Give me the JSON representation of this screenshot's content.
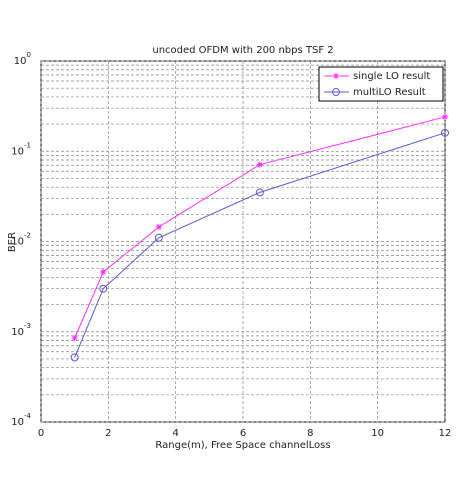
{
  "chart_data": {
    "type": "line",
    "title": "uncoded OFDM with 200 nbps TSF 2",
    "x_label": "Range(m), Free Space channelLoss",
    "y_label": "BER",
    "xlim": [
      0,
      12
    ],
    "xticks": [
      0,
      2,
      4,
      6,
      8,
      10,
      12
    ],
    "ylim": [
      0.0001,
      1
    ],
    "yticks": [
      {
        "value": 0.0001,
        "label": "10",
        "exponent": "-4"
      },
      {
        "value": 0.001,
        "label": "10",
        "exponent": "-3"
      },
      {
        "value": 0.01,
        "label": "10",
        "exponent": "-2"
      },
      {
        "value": 0.1,
        "label": "10",
        "exponent": "-1"
      },
      {
        "value": 1,
        "label": "10",
        "exponent": "0"
      }
    ],
    "log_y": true,
    "grid": true,
    "minor_grid": true,
    "legend": "upper-right",
    "series": [
      {
        "name": "single LO result",
        "color": "#ff33ff",
        "marker": "star",
        "x": [
          1,
          1.85,
          3.5,
          6.5,
          12
        ],
        "values": [
          0.00085,
          0.0046,
          0.0145,
          0.071,
          0.24
        ]
      },
      {
        "name": "multiLO Result",
        "color": "#5b5bd6",
        "marker": "circle",
        "x": [
          1,
          1.85,
          3.5,
          6.5,
          12
        ],
        "values": [
          0.00052,
          0.003,
          0.011,
          0.035,
          0.16
        ]
      }
    ]
  }
}
